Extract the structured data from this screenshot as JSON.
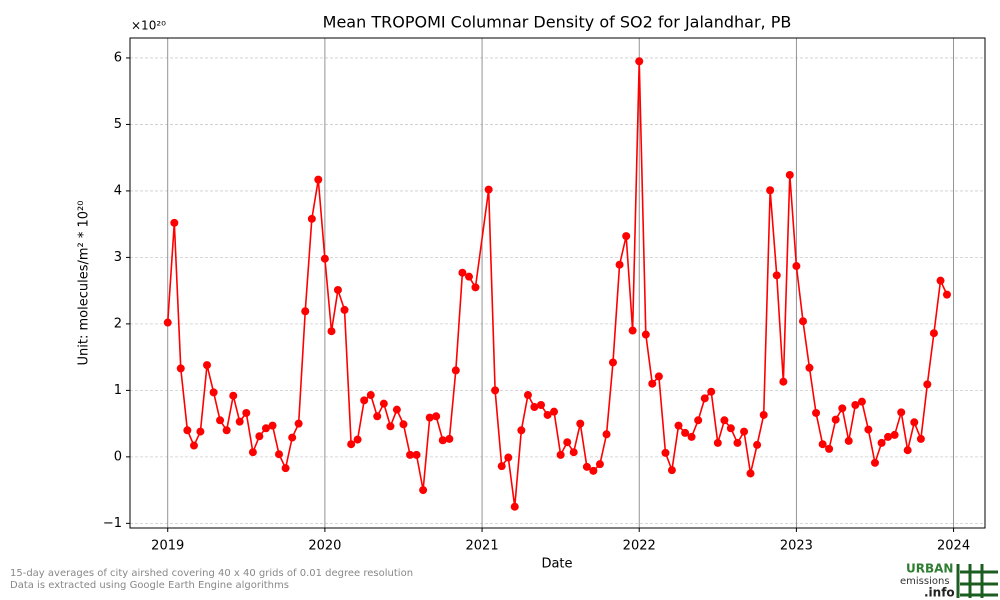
{
  "chart_data": {
    "type": "line",
    "title": "Mean TROPOMI Columnar Density of SO2 for Jalandhar, PB",
    "offset_label": "×10²⁰",
    "xlabel": "Date",
    "ylabel": "Unit: molecules/m² * 10²⁰",
    "color": "#ff0000",
    "grid": true,
    "xlim": [
      2018.76,
      2024.2
    ],
    "xticks": [
      2019,
      2020,
      2021,
      2022,
      2023,
      2024
    ],
    "ylim": [
      -1.07,
      6.3
    ],
    "yticks": [
      {
        "value": -1,
        "label": "−1"
      },
      0,
      1,
      2,
      3,
      4,
      5,
      6
    ],
    "x": [
      2019,
      2019.042,
      2019.083,
      2019.125,
      2019.167,
      2019.208,
      2019.25,
      2019.292,
      2019.333,
      2019.375,
      2019.417,
      2019.458,
      2019.5,
      2019.542,
      2019.583,
      2019.625,
      2019.667,
      2019.708,
      2019.75,
      2019.792,
      2019.833,
      2019.875,
      2019.917,
      2019.958,
      2020,
      2020.042,
      2020.083,
      2020.125,
      2020.167,
      2020.208,
      2020.25,
      2020.292,
      2020.333,
      2020.375,
      2020.417,
      2020.458,
      2020.5,
      2020.542,
      2020.583,
      2020.625,
      2020.667,
      2020.708,
      2020.75,
      2020.792,
      2020.833,
      2020.875,
      2020.917,
      2020.958,
      2021.042,
      2021.083,
      2021.125,
      2021.167,
      2021.208,
      2021.25,
      2021.292,
      2021.333,
      2021.375,
      2021.417,
      2021.458,
      2021.5,
      2021.542,
      2021.583,
      2021.625,
      2021.667,
      2021.708,
      2021.75,
      2021.792,
      2021.833,
      2021.875,
      2021.917,
      2021.958,
      2022,
      2022.042,
      2022.083,
      2022.125,
      2022.167,
      2022.208,
      2022.25,
      2022.292,
      2022.333,
      2022.375,
      2022.417,
      2022.458,
      2022.5,
      2022.542,
      2022.583,
      2022.625,
      2022.667,
      2022.708,
      2022.75,
      2022.792,
      2022.833,
      2022.875,
      2022.917,
      2022.958,
      2023,
      2023.042,
      2023.083,
      2023.125,
      2023.167,
      2023.208,
      2023.25,
      2023.292,
      2023.333,
      2023.375,
      2023.417,
      2023.458,
      2023.5,
      2023.542,
      2023.583,
      2023.625,
      2023.667,
      2023.708,
      2023.75,
      2023.792,
      2023.833,
      2023.875,
      2023.917,
      2023.958
    ],
    "values": [
      2.02,
      3.52,
      1.33,
      0.4,
      0.17,
      0.38,
      1.38,
      0.97,
      0.55,
      0.4,
      0.92,
      0.53,
      0.66,
      0.07,
      0.31,
      0.43,
      0.47,
      0.04,
      -0.17,
      0.29,
      0.5,
      2.19,
      3.58,
      4.17,
      2.98,
      1.89,
      2.51,
      2.21,
      0.19,
      0.26,
      0.85,
      0.93,
      0.61,
      0.8,
      0.46,
      0.71,
      0.49,
      0.03,
      0.03,
      -0.5,
      0.59,
      0.61,
      0.25,
      0.27,
      1.3,
      2.77,
      2.71,
      2.55,
      4.02,
      1.0,
      -0.14,
      -0.01,
      -0.75,
      0.4,
      0.93,
      0.75,
      0.78,
      0.63,
      0.68,
      0.03,
      0.22,
      0.07,
      0.5,
      -0.15,
      -0.21,
      -0.11,
      0.34,
      1.42,
      2.89,
      3.32,
      1.9,
      5.95,
      1.84,
      1.1,
      1.21,
      0.06,
      -0.2,
      0.47,
      0.36,
      0.3,
      0.55,
      0.88,
      0.98,
      0.21,
      0.55,
      0.43,
      0.21,
      0.38,
      -0.25,
      0.18,
      0.63,
      4.01,
      2.73,
      1.13,
      4.24,
      2.87,
      2.04,
      1.34,
      0.66,
      0.19,
      0.12,
      0.56,
      0.73,
      0.24,
      0.78,
      0.83,
      0.41,
      -0.09,
      0.21,
      0.3,
      0.33,
      0.67,
      0.1,
      0.52,
      0.27,
      1.09,
      1.86,
      2.65,
      2.44
    ],
    "footnotes": [
      "15-day averages of city airshed covering 40 x 40 grids of 0.01 degree resolution",
      "Data is extracted using Google Earth Engine algorithms"
    ],
    "logo": [
      "URBAN",
      "emissions",
      ".info"
    ]
  }
}
